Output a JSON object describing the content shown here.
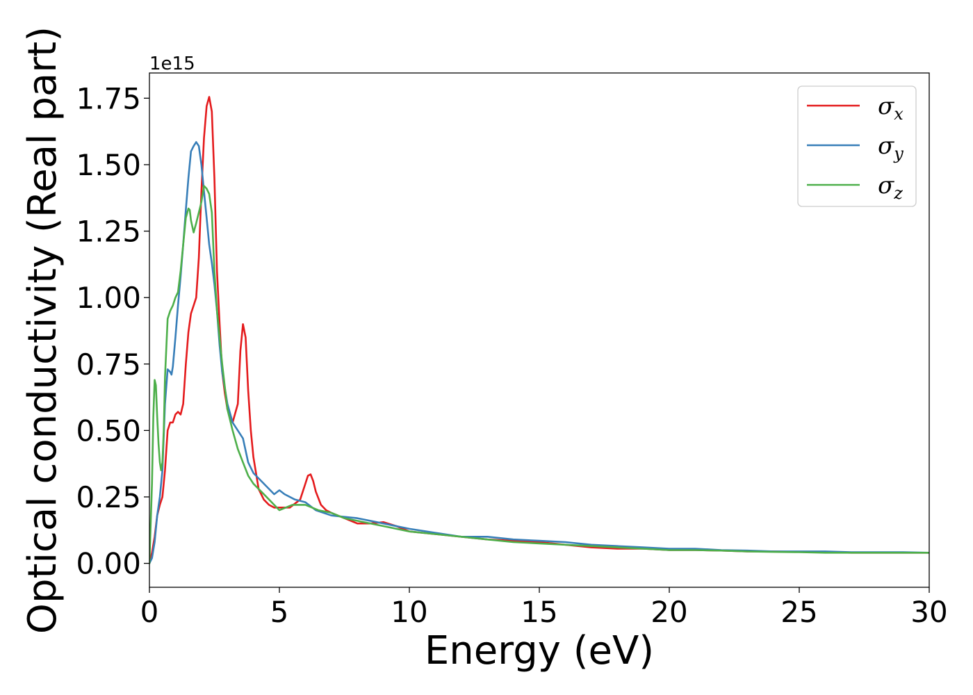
{
  "chart_data": {
    "type": "line",
    "title": "",
    "xlabel": "Energy (eV)",
    "ylabel": "Optical conductivity (Real part)",
    "y_offset_label": "1e15",
    "xlim": [
      0,
      30
    ],
    "ylim": [
      -0.09,
      1.845
    ],
    "x_ticks": [
      0,
      5,
      10,
      15,
      20,
      25,
      30
    ],
    "x_tick_labels": [
      "0",
      "5",
      "10",
      "15",
      "20",
      "25",
      "30"
    ],
    "y_ticks": [
      0.0,
      0.25,
      0.5,
      0.75,
      1.0,
      1.25,
      1.5,
      1.75
    ],
    "y_tick_labels": [
      "0.00",
      "0.25",
      "0.50",
      "0.75",
      "1.00",
      "1.25",
      "1.50",
      "1.75"
    ],
    "grid": false,
    "legend_position": "top-right",
    "series": [
      {
        "name": "σx",
        "symbol": "σ",
        "subscript": "x",
        "color": "#e41a1c",
        "x": [
          0,
          0.1,
          0.2,
          0.3,
          0.4,
          0.5,
          0.6,
          0.7,
          0.8,
          0.9,
          1.0,
          1.1,
          1.2,
          1.3,
          1.4,
          1.5,
          1.6,
          1.7,
          1.8,
          1.9,
          2.0,
          2.1,
          2.2,
          2.3,
          2.4,
          2.5,
          2.6,
          2.7,
          2.8,
          2.9,
          3.0,
          3.2,
          3.4,
          3.5,
          3.6,
          3.7,
          3.8,
          3.9,
          4.0,
          4.2,
          4.4,
          4.6,
          4.8,
          5.0,
          5.4,
          5.8,
          6.0,
          6.1,
          6.2,
          6.3,
          6.4,
          6.6,
          6.8,
          7.0,
          7.5,
          8.0,
          8.5,
          9.0,
          9.5,
          10,
          11,
          12,
          13,
          14,
          15,
          16,
          17,
          18,
          19,
          20,
          21,
          22,
          23,
          24,
          25,
          26,
          27,
          28,
          29,
          30
        ],
        "y": [
          0.0,
          0.04,
          0.1,
          0.18,
          0.22,
          0.25,
          0.35,
          0.5,
          0.53,
          0.53,
          0.56,
          0.57,
          0.56,
          0.6,
          0.75,
          0.87,
          0.94,
          0.97,
          1.0,
          1.15,
          1.4,
          1.6,
          1.72,
          1.755,
          1.7,
          1.45,
          1.1,
          0.9,
          0.72,
          0.64,
          0.58,
          0.53,
          0.6,
          0.8,
          0.9,
          0.85,
          0.65,
          0.5,
          0.4,
          0.28,
          0.24,
          0.22,
          0.21,
          0.21,
          0.21,
          0.24,
          0.3,
          0.33,
          0.335,
          0.31,
          0.27,
          0.22,
          0.2,
          0.19,
          0.17,
          0.15,
          0.15,
          0.155,
          0.14,
          0.12,
          0.11,
          0.1,
          0.09,
          0.085,
          0.08,
          0.07,
          0.06,
          0.055,
          0.055,
          0.05,
          0.05,
          0.048,
          0.045,
          0.045,
          0.043,
          0.042,
          0.04,
          0.04,
          0.04,
          0.04
        ]
      },
      {
        "name": "σy",
        "symbol": "σ",
        "subscript": "y",
        "color": "#377eb8",
        "x": [
          0,
          0.1,
          0.2,
          0.3,
          0.4,
          0.5,
          0.6,
          0.7,
          0.8,
          0.85,
          0.9,
          1.0,
          1.1,
          1.2,
          1.3,
          1.4,
          1.5,
          1.6,
          1.7,
          1.8,
          1.9,
          2.0,
          2.1,
          2.2,
          2.3,
          2.4,
          2.5,
          2.6,
          2.7,
          2.8,
          3.0,
          3.2,
          3.4,
          3.6,
          3.8,
          4.0,
          4.4,
          4.8,
          5.0,
          5.2,
          5.6,
          6.0,
          6.4,
          7.0,
          7.5,
          8.0,
          9.0,
          10,
          11,
          12,
          13,
          14,
          15,
          16,
          17,
          18,
          19,
          20,
          21,
          22,
          23,
          24,
          25,
          26,
          27,
          28,
          29,
          30
        ],
        "y": [
          0.0,
          0.02,
          0.08,
          0.18,
          0.25,
          0.35,
          0.6,
          0.73,
          0.72,
          0.71,
          0.74,
          0.85,
          0.97,
          1.08,
          1.2,
          1.33,
          1.45,
          1.55,
          1.57,
          1.585,
          1.57,
          1.5,
          1.4,
          1.3,
          1.2,
          1.13,
          1.05,
          0.95,
          0.82,
          0.72,
          0.6,
          0.53,
          0.5,
          0.47,
          0.38,
          0.34,
          0.3,
          0.26,
          0.275,
          0.26,
          0.24,
          0.23,
          0.2,
          0.18,
          0.175,
          0.17,
          0.15,
          0.13,
          0.115,
          0.1,
          0.1,
          0.09,
          0.085,
          0.08,
          0.07,
          0.065,
          0.06,
          0.055,
          0.055,
          0.05,
          0.048,
          0.045,
          0.045,
          0.045,
          0.042,
          0.042,
          0.042,
          0.04
        ]
      },
      {
        "name": "σz",
        "symbol": "σ",
        "subscript": "z",
        "color": "#4daf4a",
        "x": [
          0,
          0.1,
          0.15,
          0.2,
          0.25,
          0.3,
          0.35,
          0.4,
          0.45,
          0.5,
          0.55,
          0.6,
          0.7,
          0.8,
          0.9,
          1.0,
          1.1,
          1.2,
          1.3,
          1.4,
          1.5,
          1.55,
          1.6,
          1.7,
          1.8,
          1.9,
          2.0,
          2.1,
          2.2,
          2.3,
          2.4,
          2.5,
          2.6,
          2.8,
          3.0,
          3.2,
          3.4,
          3.6,
          3.8,
          4.0,
          4.4,
          4.8,
          5.0,
          5.5,
          6.0,
          6.5,
          7.0,
          7.5,
          8.0,
          9.0,
          10,
          11,
          12,
          13,
          14,
          15,
          16,
          17,
          18,
          19,
          20,
          21,
          22,
          23,
          24,
          25,
          26,
          27,
          28,
          29,
          30
        ],
        "y": [
          0.0,
          0.3,
          0.55,
          0.69,
          0.67,
          0.55,
          0.45,
          0.38,
          0.35,
          0.38,
          0.5,
          0.7,
          0.92,
          0.95,
          0.97,
          1.0,
          1.02,
          1.1,
          1.2,
          1.3,
          1.335,
          1.33,
          1.29,
          1.245,
          1.28,
          1.32,
          1.36,
          1.42,
          1.41,
          1.39,
          1.32,
          1.1,
          0.95,
          0.75,
          0.58,
          0.5,
          0.43,
          0.38,
          0.33,
          0.3,
          0.26,
          0.22,
          0.2,
          0.22,
          0.22,
          0.2,
          0.19,
          0.17,
          0.16,
          0.14,
          0.12,
          0.11,
          0.1,
          0.09,
          0.08,
          0.075,
          0.07,
          0.065,
          0.06,
          0.055,
          0.05,
          0.05,
          0.048,
          0.045,
          0.043,
          0.042,
          0.04,
          0.04,
          0.04,
          0.04,
          0.04
        ]
      }
    ]
  }
}
